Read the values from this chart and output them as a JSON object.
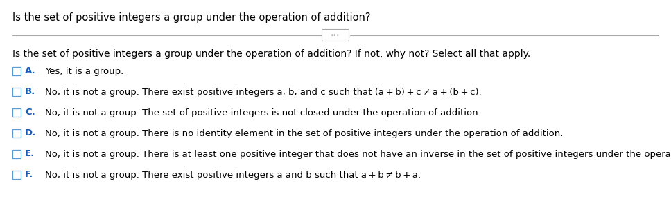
{
  "title": "Is the set of positive integers a group under the operation of addition?",
  "question": "Is the set of positive integers a group under the operation of addition? If not, why not? Select all that apply.",
  "options": [
    {
      "letter": "A.",
      "text": "Yes, it is a group."
    },
    {
      "letter": "B.",
      "text": "No, it is not a group. There exist positive integers a, b, and c such that (a + b) + c ≠ a + (b + c)."
    },
    {
      "letter": "C.",
      "text": "No, it is not a group. The set of positive integers is not closed under the operation of addition."
    },
    {
      "letter": "D.",
      "text": "No, it is not a group. There is no identity element in the set of positive integers under the operation of addition."
    },
    {
      "letter": "E.",
      "text": "No, it is not a group. There is at least one positive integer that does not have an inverse in the set of positive integers under the operation of addition."
    },
    {
      "letter": "F.",
      "text": "No, it is not a group. There exist positive integers a and b such that a + b ≠ b + a."
    }
  ],
  "bg_color": "#ffffff",
  "text_color": "#000000",
  "letter_color": "#1a5cb5",
  "title_fontsize": 10.5,
  "question_fontsize": 10.0,
  "option_fontsize": 9.5,
  "divider_color": "#aaaaaa",
  "checkbox_color": "#5b9bd5",
  "ellipsis_box_color": "#aaaaaa"
}
